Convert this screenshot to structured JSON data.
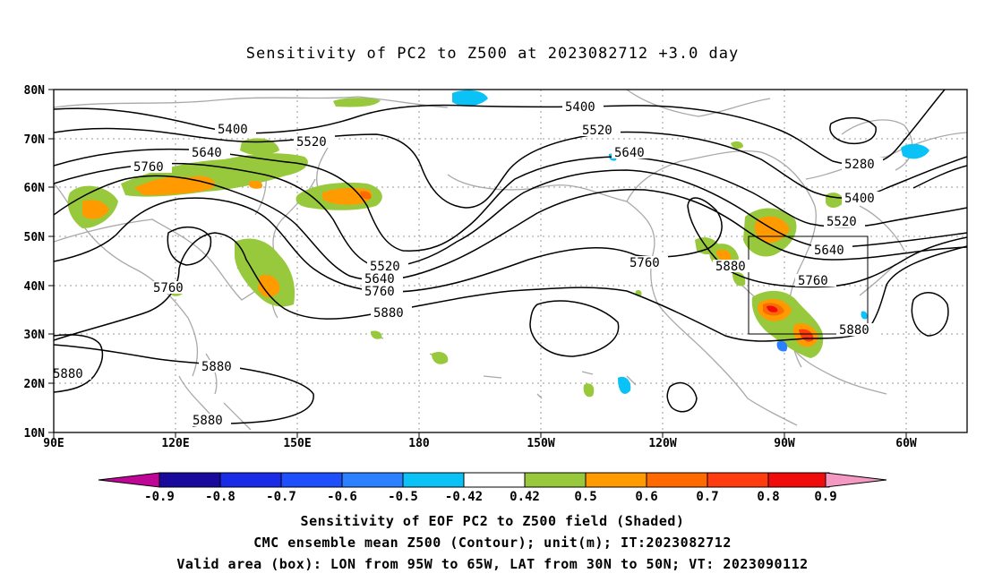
{
  "title": "Sensitivity of PC2 to Z500 at 2023082712 +3.0 day",
  "axes": {
    "lat_labels": [
      "80N",
      "70N",
      "60N",
      "50N",
      "40N",
      "30N",
      "20N",
      "10N"
    ],
    "lon_labels": [
      "90E",
      "120E",
      "150E",
      "180",
      "150W",
      "120W",
      "90W",
      "60W"
    ]
  },
  "contour_labels": [
    "5400",
    "5520",
    "5640",
    "5760",
    "5400",
    "5520",
    "5640",
    "5760",
    "5520",
    "5640",
    "5760",
    "5880",
    "5760",
    "5880",
    "5880",
    "5880",
    "5280",
    "5400",
    "5520",
    "5640",
    "5760",
    "5880",
    "5760",
    "5880"
  ],
  "colorbar": {
    "labels": [
      "-0.9",
      "-0.8",
      "-0.7",
      "-0.6",
      "-0.5",
      "-0.42",
      "0.42",
      "0.5",
      "0.6",
      "0.7",
      "0.8",
      "0.9"
    ],
    "colors": [
      "#1a0a9c",
      "#1a2be8",
      "#1e4ffa",
      "#2b80ff",
      "#0ac2f5",
      "#ffffff",
      "#98c93c",
      "#ff9a00",
      "#ff6a00",
      "#ff3c10",
      "#f00c0c"
    ],
    "low_triangle_color": "#c00696",
    "high_triangle_color": "#f49ac2"
  },
  "captions": [
    "Sensitivity of EOF PC2 to Z500 field (Shaded)",
    "CMC ensemble mean Z500 (Contour); unit(m); IT:2023082712",
    "Valid area (box): LON from 95W to 65W, LAT from 30N to 50N; VT: 2023090112"
  ]
}
